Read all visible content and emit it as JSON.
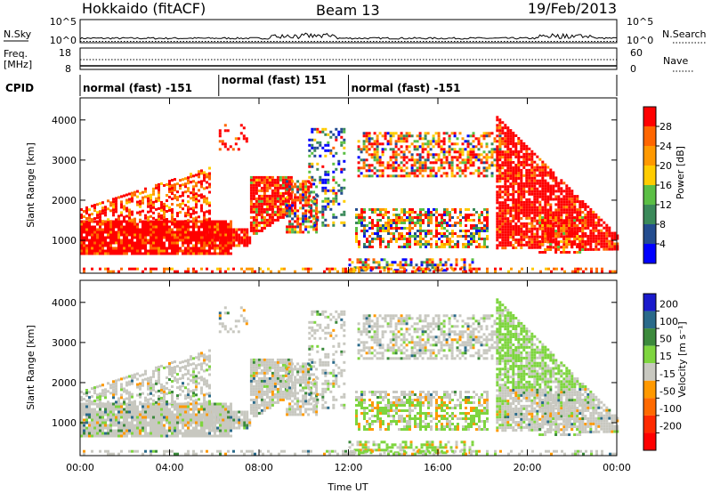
{
  "header": {
    "station": "Hokkaido (fitACF)",
    "beam": "Beam 13",
    "date": "19/Feb/2013"
  },
  "labels": {
    "nsky": "N.Sky",
    "nsearch": "N.Search",
    "freq_line1": "Freq.",
    "freq_line2": "[MHz]",
    "nave": "Nave",
    "cpid": "CPID"
  },
  "noise_panel": {
    "ticks": [
      "10^5",
      "10^0"
    ]
  },
  "freq_panel": {
    "left_ticks": [
      "18",
      "8"
    ],
    "right_ticks": [
      "60",
      "0"
    ]
  },
  "cpid_segments": [
    {
      "label": "normal (fast) -151",
      "start_hour": 0,
      "end_hour": 6.2
    },
    {
      "label": "normal (fast) 151",
      "start_hour": 6.2,
      "end_hour": 12.0
    },
    {
      "label": "normal (fast) -151",
      "start_hour": 12.0,
      "end_hour": 24.0
    }
  ],
  "chart_data": [
    {
      "type": "heatmap",
      "name": "power",
      "ylabel": "Slant Range [km]",
      "xlabel": "",
      "xlim": [
        0,
        24
      ],
      "ylim": [
        180,
        4550
      ],
      "yticks": [
        1000,
        2000,
        3000,
        4000
      ],
      "colorbar": {
        "label": "Power [dB]",
        "tick_labels": [
          "4",
          "8",
          "12",
          "16",
          "20",
          "24",
          "28"
        ],
        "colors": [
          "#0000ff",
          "#244d8f",
          "#3b8a5a",
          "#5bbf45",
          "#ffcc00",
          "#ff9900",
          "#ff6600",
          "#ff0000"
        ]
      }
    },
    {
      "type": "heatmap",
      "name": "velocity",
      "ylabel": "Slant Range [km]",
      "xlabel": "Time UT",
      "xlim": [
        0,
        24
      ],
      "ylim": [
        180,
        4550
      ],
      "yticks": [
        1000,
        2000,
        3000,
        4000
      ],
      "xticks": [
        "00:00",
        "04:00",
        "08:00",
        "12:00",
        "16:00",
        "20:00",
        "00:00"
      ],
      "colorbar": {
        "label": "Velocity [m s⁻¹]",
        "tick_labels": [
          "200",
          "100",
          "50",
          "15",
          "-15",
          "-50",
          "-100",
          "-200"
        ],
        "colors": [
          "#1a1acc",
          "#2a6a8a",
          "#3c8a3c",
          "#7ed53f",
          "#c8c8c0",
          "#ff9900",
          "#ff6a00",
          "#ff2a00",
          "#ff0000"
        ]
      }
    }
  ]
}
